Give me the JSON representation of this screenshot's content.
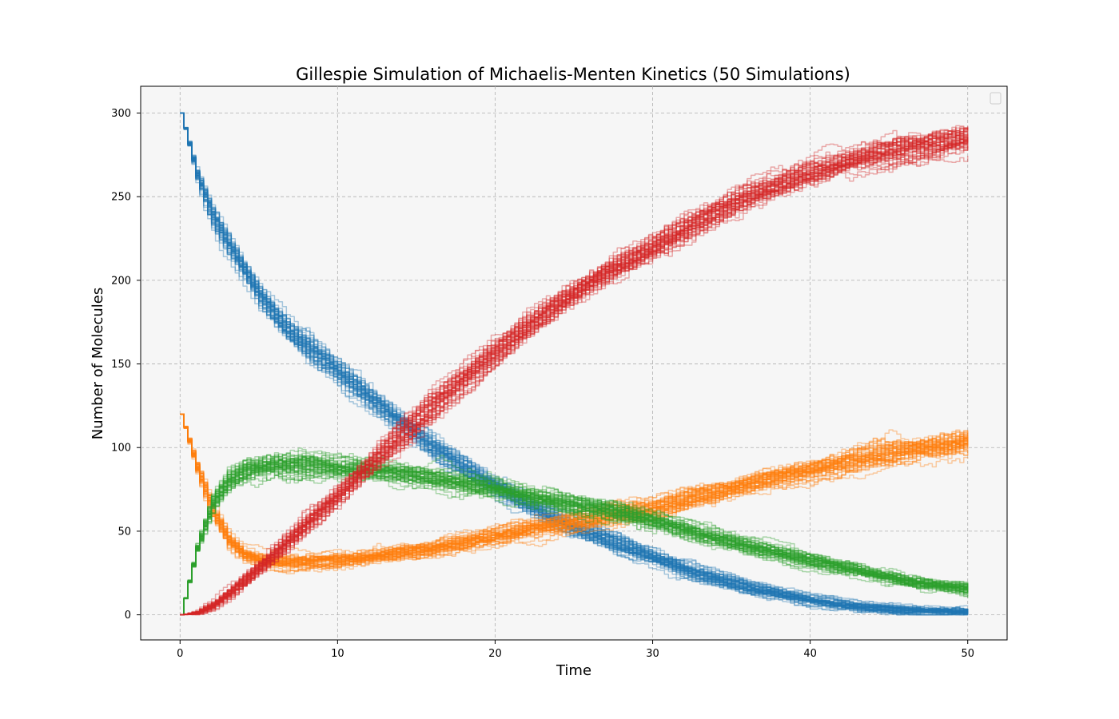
{
  "chart_data": {
    "type": "line",
    "title": "Gillespie Simulation of Michaelis-Menten Kinetics (50 Simulations)",
    "xlabel": "Time",
    "ylabel": "Number of Molecules",
    "xlim": [
      -2.5,
      52.5
    ],
    "ylim": [
      -15,
      316
    ],
    "x_ticks": [
      0,
      10,
      20,
      30,
      40,
      50
    ],
    "y_ticks": [
      0,
      50,
      100,
      150,
      200,
      250,
      300
    ],
    "grid": true,
    "legend": "top-right (empty box)",
    "simulations": 50,
    "time_points": [
      0,
      1,
      2,
      3,
      4,
      5,
      6,
      7,
      8,
      10,
      12,
      14,
      16,
      18,
      20,
      22,
      25,
      28,
      30,
      33,
      36,
      40,
      43,
      46,
      50
    ],
    "series": [
      {
        "color": "#1f77b4",
        "values": [
          300,
          263,
          238,
          221,
          205,
          190,
          178,
          168,
          160,
          145,
          130,
          115,
          100,
          88,
          76,
          66,
          52,
          41,
          34,
          24,
          16,
          9,
          5,
          3,
          2
        ]
      },
      {
        "color": "#ff7f0e",
        "values": [
          120,
          88,
          62,
          45,
          36,
          33,
          32,
          32,
          32,
          33,
          35,
          38,
          40,
          43,
          47,
          51,
          56,
          61,
          64,
          72,
          79,
          87,
          93,
          99,
          104
        ]
      },
      {
        "color": "#2ca02c",
        "values": [
          0,
          40,
          67,
          80,
          86,
          88,
          89,
          89,
          89,
          87,
          86,
          84,
          81,
          78,
          75,
          71,
          65,
          60,
          56,
          48,
          41,
          32,
          26,
          20,
          15
        ]
      },
      {
        "color": "#d62728",
        "values": [
          0,
          1,
          5,
          12,
          20,
          28,
          37,
          46,
          55,
          72,
          90,
          107,
          125,
          141,
          157,
          172,
          193,
          210,
          220,
          236,
          250,
          264,
          272,
          278,
          284
        ]
      }
    ]
  }
}
